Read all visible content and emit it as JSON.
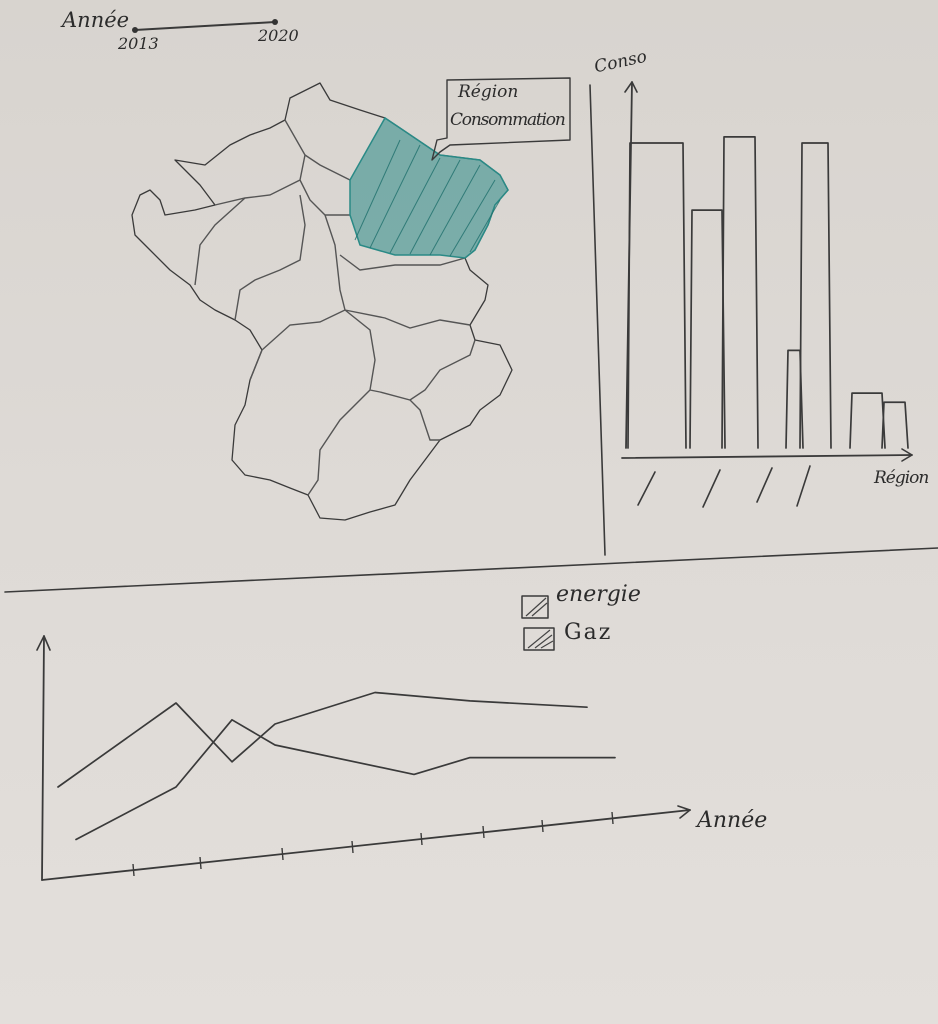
{
  "year_slider": {
    "label": "Année",
    "start": "2013",
    "end": "2020"
  },
  "map": {
    "tooltip_line1": "Région",
    "tooltip_line2": "Consommation",
    "highlight_color": "#2a8a86"
  },
  "bar_chart": {
    "ylabel": "Conso",
    "xlabel": "Région"
  },
  "line_chart": {
    "xlabel": "Année",
    "legend": [
      {
        "label": "energie"
      },
      {
        "label": "Gaz"
      }
    ]
  },
  "chart_data": [
    {
      "type": "bar",
      "ylabel": "Conso",
      "xlabel": "Région",
      "categories": [
        "",
        "",
        "",
        "",
        "",
        "",
        ""
      ],
      "values": [
        100,
        78,
        102,
        32,
        100,
        18,
        15
      ],
      "ylim": [
        0,
        120
      ]
    },
    {
      "type": "line",
      "xlabel": "Année",
      "x": [
        1,
        2,
        3,
        4,
        5,
        6,
        7
      ],
      "series": [
        {
          "values": [
            30,
            70,
            42,
            60,
            75,
            71,
            68
          ]
        },
        {
          "values": [
            5,
            30,
            62,
            50,
            36,
            44,
            44
          ]
        }
      ]
    }
  ]
}
